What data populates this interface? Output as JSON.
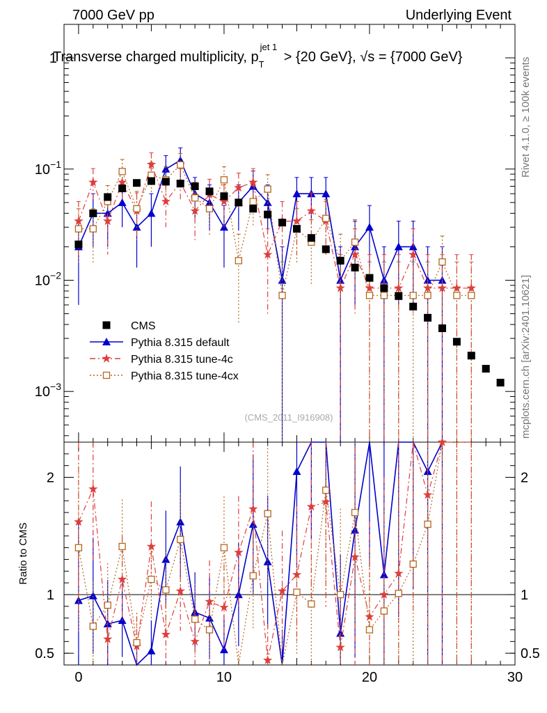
{
  "header": {
    "left": "7000 GeV pp",
    "right": "Underlying Event",
    "title_main": "Transverse charged multiplicity, p",
    "title_sub": "T",
    "title_sup": "jet 1",
    "title_rest": " > {20 GeV}, √s = {7000 GeV}"
  },
  "side": {
    "rivet": "Rivet 4.1.0, ≥ 100k events",
    "mcplots": "mcplots.cern.ch [arXiv:2401.10621]"
  },
  "watermark": "(CMS_2011_I916908)",
  "colors": {
    "cms": "#000000",
    "default": "#0000cc",
    "tune4c": "#e03c3c",
    "tune4cx": "#b5651d"
  },
  "chart_data": {
    "type": "scatter",
    "x_range": [
      -1,
      30
    ],
    "y_range_log": [
      0.00035,
      2.0
    ],
    "ratio_range": [
      0.4,
      2.3
    ],
    "ylabel_ratio": "Ratio to CMS",
    "main_ticks": [
      {
        "v": 1,
        "base": "1",
        "exp": ""
      },
      {
        "v": 0.1,
        "base": "10",
        "exp": "−1"
      },
      {
        "v": 0.01,
        "base": "10",
        "exp": "−2"
      },
      {
        "v": 0.001,
        "base": "10",
        "exp": "−3"
      }
    ],
    "ratio_ticks": [
      {
        "v": 0.5,
        "label": "0.5"
      },
      {
        "v": 1,
        "label": "1"
      },
      {
        "v": 2,
        "label": "2"
      }
    ],
    "x_ticks": [
      {
        "v": 0,
        "label": "0"
      },
      {
        "v": 10,
        "label": "10"
      },
      {
        "v": 20,
        "label": "20"
      },
      {
        "v": 30,
        "label": "30"
      }
    ],
    "legend": [
      {
        "key": "cms",
        "label": "CMS"
      },
      {
        "key": "default",
        "label": "Pythia 8.315 default"
      },
      {
        "key": "tune4c",
        "label": "Pythia 8.315 tune-4c"
      },
      {
        "key": "tune4cx",
        "label": "Pythia 8.315 tune-4cx"
      }
    ],
    "series": [
      {
        "key": "cms",
        "name": "CMS",
        "x": [
          0,
          1,
          2,
          3,
          4,
          5,
          6,
          7,
          8,
          9,
          10,
          11,
          12,
          13,
          14,
          15,
          16,
          17,
          18,
          19,
          20,
          21,
          22,
          23,
          24,
          25,
          26,
          27,
          28,
          29
        ],
        "y": [
          0.021,
          0.04,
          0.056,
          0.067,
          0.075,
          0.078,
          0.077,
          0.074,
          0.07,
          0.063,
          0.057,
          0.05,
          0.044,
          0.039,
          0.033,
          0.029,
          0.024,
          0.019,
          0.015,
          0.013,
          0.0105,
          0.0085,
          0.0072,
          0.0058,
          0.0046,
          0.0037,
          0.0028,
          0.0021,
          0.0016,
          0.0012
        ]
      },
      {
        "key": "default",
        "name": "Pythia 8.315 default",
        "x": [
          0,
          1,
          2,
          3,
          4,
          5,
          6,
          7,
          8,
          9,
          10,
          11,
          12,
          13,
          14,
          15,
          16,
          17,
          18,
          19,
          20,
          21,
          22,
          23,
          24,
          25
        ],
        "y": [
          0.02,
          0.04,
          0.04,
          0.05,
          0.03,
          0.04,
          0.1,
          0.12,
          0.06,
          0.05,
          0.03,
          0.05,
          0.07,
          0.05,
          0.01,
          0.06,
          0.06,
          0.06,
          0.01,
          0.02,
          0.03,
          0.01,
          0.02,
          0.02,
          0.01,
          0.01
        ],
        "err": [
          0.014,
          0.02,
          0.02,
          0.02,
          0.017,
          0.02,
          0.032,
          0.035,
          0.024,
          0.022,
          0.017,
          0.022,
          0.026,
          0.022,
          0.01,
          0.024,
          0.024,
          0.024,
          0.01,
          0.014,
          0.017,
          0.01,
          0.014,
          0.014,
          0.01,
          0.01
        ],
        "ratio": [
          0.95,
          0.99,
          0.75,
          0.78,
          0.38,
          0.52,
          1.3,
          1.62,
          0.85,
          0.8,
          0.53,
          1.0,
          1.6,
          1.28,
          0.35,
          2.05,
          2.45,
          3.0,
          0.67,
          1.55,
          2.85,
          1.17,
          2.7,
          3.5,
          2.05,
          2.75
        ]
      },
      {
        "key": "tune4c",
        "name": "Pythia 8.315 tune-4c",
        "x": [
          0,
          1,
          2,
          3,
          4,
          5,
          6,
          7,
          8,
          9,
          10,
          11,
          12,
          13,
          14,
          15,
          16,
          17,
          18,
          19,
          20,
          21,
          22,
          23,
          24,
          25,
          26,
          27
        ],
        "y": [
          0.034,
          0.076,
          0.034,
          0.076,
          0.042,
          0.11,
          0.051,
          0.076,
          0.042,
          0.059,
          0.051,
          0.068,
          0.076,
          0.017,
          0.034,
          0.034,
          0.042,
          0.034,
          0.0085,
          0.017,
          0.0085,
          0.0085,
          0.0085,
          0.017,
          0.0085,
          0.0085,
          0.0085,
          0.0085
        ],
        "err": [
          0.017,
          0.025,
          0.017,
          0.025,
          0.019,
          0.03,
          0.021,
          0.025,
          0.019,
          0.022,
          0.021,
          0.024,
          0.025,
          0.012,
          0.017,
          0.017,
          0.019,
          0.017,
          0.0085,
          0.012,
          0.0085,
          0.0085,
          0.0085,
          0.012,
          0.0085,
          0.0085,
          0.0085,
          0.0085
        ],
        "ratio": [
          1.62,
          1.9,
          0.62,
          1.13,
          0.56,
          1.41,
          0.66,
          1.03,
          0.6,
          0.94,
          0.89,
          1.36,
          1.73,
          0.44,
          1.03,
          1.17,
          1.75,
          1.79,
          0.55,
          1.32,
          0.81,
          1.0,
          1.18,
          2.93,
          1.85,
          2.3,
          3.0,
          4.0
        ]
      },
      {
        "key": "tune4cx",
        "name": "Pythia 8.315 tune-4cx",
        "x": [
          0,
          1,
          2,
          3,
          4,
          5,
          6,
          7,
          8,
          9,
          10,
          11,
          12,
          13,
          14,
          15,
          16,
          17,
          18,
          19,
          20,
          21,
          22,
          23,
          24,
          25,
          26,
          27
        ],
        "y": [
          0.029,
          0.029,
          0.051,
          0.095,
          0.044,
          0.088,
          0.08,
          0.109,
          0.055,
          0.044,
          0.08,
          0.015,
          0.051,
          0.066,
          0.0073,
          0.029,
          0.022,
          0.036,
          0.015,
          0.022,
          0.0073,
          0.0073,
          0.0073,
          0.0073,
          0.0073,
          0.0146,
          0.0073,
          0.0073
        ],
        "err": [
          0.015,
          0.015,
          0.02,
          0.027,
          0.019,
          0.026,
          0.025,
          0.029,
          0.021,
          0.019,
          0.025,
          0.011,
          0.02,
          0.023,
          0.0073,
          0.015,
          0.013,
          0.017,
          0.011,
          0.013,
          0.0073,
          0.0073,
          0.0073,
          0.0073,
          0.0073,
          0.0104,
          0.0073,
          0.0073
        ],
        "ratio": [
          1.4,
          0.73,
          0.91,
          1.41,
          0.59,
          1.13,
          1.04,
          1.47,
          0.79,
          0.7,
          1.4,
          0.3,
          1.16,
          1.69,
          0.22,
          1.02,
          0.92,
          1.89,
          1.0,
          1.7,
          0.7,
          0.86,
          1.01,
          1.26,
          1.6,
          3.9,
          2.6,
          3.5
        ]
      }
    ]
  }
}
